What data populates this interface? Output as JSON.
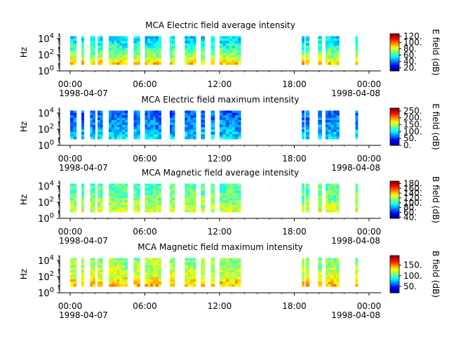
{
  "chart_data": [
    {
      "type": "heatmap",
      "title": "MCA  Electric field average intensity",
      "ylabel": "Hz",
      "yscale": "log",
      "ylim": [
        1,
        40000
      ],
      "y_ticks": [
        "10^0",
        "10^2",
        "10^4"
      ],
      "x_ticks": [
        "00:00",
        "06:00",
        "12:00",
        "18:00",
        "00:00"
      ],
      "x_dates": [
        "1998-04-07",
        "1998-04-08"
      ],
      "xlim": [
        "1998-04-07T00:00",
        "1998-04-08T00:00"
      ],
      "colorbar": {
        "label": "E field (dB)",
        "ticks": [
          "20.",
          "40.",
          "60.",
          "80.",
          "100.",
          "120."
        ],
        "range": [
          10,
          128
        ]
      },
      "data_intervals_hours": [
        [
          0.0,
          0.5
        ],
        [
          0.9,
          1.1
        ],
        [
          1.6,
          2.0
        ],
        [
          2.2,
          2.6
        ],
        [
          3.1,
          4.6
        ],
        [
          5.1,
          5.6
        ],
        [
          6.0,
          7.3
        ],
        [
          8.0,
          8.4
        ],
        [
          9.2,
          10.1
        ],
        [
          10.5,
          10.8
        ],
        [
          11.3,
          11.6
        ],
        [
          12.0,
          13.0
        ],
        [
          13.0,
          13.7
        ],
        [
          18.6,
          18.8
        ],
        [
          18.9,
          19.2
        ],
        [
          19.9,
          20.2
        ],
        [
          20.5,
          21.6
        ],
        [
          22.9,
          23.1
        ]
      ],
      "low_freq_level": 90,
      "high_freq_level": 50
    },
    {
      "type": "heatmap",
      "title": "MCA  Electric field maximum intensity",
      "ylabel": "Hz",
      "yscale": "log",
      "ylim": [
        1,
        40000
      ],
      "y_ticks": [
        "10^0",
        "10^2",
        "10^4"
      ],
      "x_ticks": [
        "00:00",
        "06:00",
        "12:00",
        "18:00",
        "00:00"
      ],
      "x_dates": [
        "1998-04-07",
        "1998-04-08"
      ],
      "xlim": [
        "1998-04-07T00:00",
        "1998-04-08T00:00"
      ],
      "colorbar": {
        "label": "E field (dB)",
        "ticks": [
          "0.",
          "50.",
          "100.",
          "150.",
          "200.",
          "250."
        ],
        "range": [
          0,
          270
        ]
      },
      "data_intervals_hours": [
        [
          0.0,
          0.5
        ],
        [
          0.9,
          1.1
        ],
        [
          1.6,
          2.0
        ],
        [
          2.2,
          2.6
        ],
        [
          3.1,
          4.6
        ],
        [
          5.1,
          5.6
        ],
        [
          6.0,
          7.3
        ],
        [
          8.0,
          8.4
        ],
        [
          9.2,
          10.1
        ],
        [
          10.5,
          10.8
        ],
        [
          11.3,
          11.6
        ],
        [
          12.0,
          13.0
        ],
        [
          13.0,
          13.7
        ],
        [
          18.6,
          18.8
        ],
        [
          18.9,
          19.2
        ],
        [
          19.9,
          20.2
        ],
        [
          20.5,
          21.6
        ],
        [
          22.9,
          23.1
        ]
      ],
      "low_freq_level": 95,
      "high_freq_level": 60
    },
    {
      "type": "heatmap",
      "title": "MCA  Magnetic field average intensity",
      "ylabel": "Hz",
      "yscale": "log",
      "ylim": [
        1,
        40000
      ],
      "y_ticks": [
        "10^0",
        "10^2",
        "10^4"
      ],
      "x_ticks": [
        "00:00",
        "06:00",
        "12:00",
        "18:00",
        "00:00"
      ],
      "x_dates": [
        "1998-04-07",
        "1998-04-08"
      ],
      "xlim": [
        "1998-04-07T00:00",
        "1998-04-08T00:00"
      ],
      "colorbar": {
        "label": "B field (dB)",
        "ticks": [
          "40.",
          "60.",
          "80.",
          "100.",
          "120.",
          "140.",
          "160.",
          "180."
        ],
        "range": [
          35,
          190
        ]
      },
      "data_intervals_hours": [
        [
          0.0,
          0.5
        ],
        [
          0.9,
          1.1
        ],
        [
          1.6,
          2.0
        ],
        [
          2.2,
          2.6
        ],
        [
          3.1,
          4.6
        ],
        [
          5.1,
          5.6
        ],
        [
          6.0,
          7.3
        ],
        [
          8.0,
          8.4
        ],
        [
          9.2,
          10.1
        ],
        [
          10.5,
          10.8
        ],
        [
          11.3,
          11.6
        ],
        [
          12.0,
          13.0
        ],
        [
          13.0,
          13.7
        ],
        [
          18.6,
          18.8
        ],
        [
          18.9,
          19.2
        ],
        [
          19.9,
          20.2
        ],
        [
          20.5,
          21.6
        ],
        [
          22.9,
          23.1
        ]
      ],
      "low_freq_level": 125,
      "high_freq_level": 105
    },
    {
      "type": "heatmap",
      "title": "MCA  Magnetic field maximum intensity",
      "ylabel": "Hz",
      "yscale": "log",
      "ylim": [
        1,
        40000
      ],
      "y_ticks": [
        "10^0",
        "10^2",
        "10^4"
      ],
      "x_ticks": [
        "00:00",
        "06:00",
        "12:00",
        "18:00",
        "00:00"
      ],
      "x_dates": [
        "1998-04-07",
        "1998-04-08"
      ],
      "xlim": [
        "1998-04-07T00:00",
        "1998-04-08T00:00"
      ],
      "colorbar": {
        "label": "B field (dB)",
        "ticks": [
          "50.",
          "100.",
          "150."
        ],
        "range": [
          20,
          195
        ]
      },
      "data_intervals_hours": [
        [
          0.0,
          0.5
        ],
        [
          0.9,
          1.1
        ],
        [
          1.6,
          2.0
        ],
        [
          2.2,
          2.6
        ],
        [
          3.1,
          4.6
        ],
        [
          5.1,
          5.6
        ],
        [
          6.0,
          7.3
        ],
        [
          8.0,
          8.4
        ],
        [
          9.2,
          10.1
        ],
        [
          10.5,
          10.8
        ],
        [
          11.3,
          11.6
        ],
        [
          12.0,
          13.0
        ],
        [
          13.0,
          13.7
        ],
        [
          18.6,
          18.8
        ],
        [
          18.9,
          19.2
        ],
        [
          19.9,
          20.2
        ],
        [
          20.5,
          21.6
        ],
        [
          22.9,
          23.1
        ]
      ],
      "low_freq_level": 140,
      "high_freq_level": 110
    }
  ]
}
